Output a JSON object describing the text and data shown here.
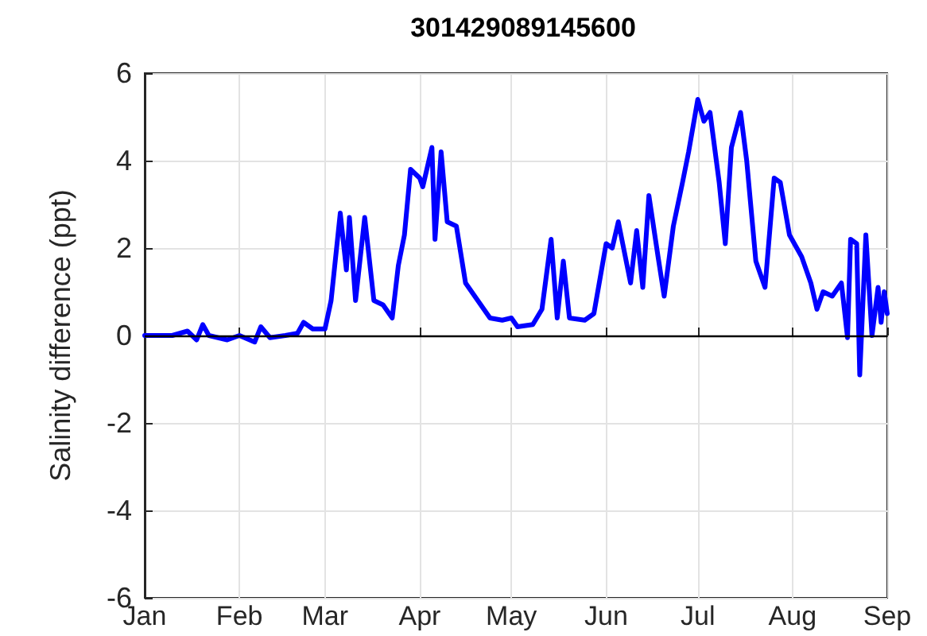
{
  "chart_data": {
    "type": "line",
    "title": "301429089145600",
    "ylabel": "Salinity difference (ppt)",
    "x": [
      "--01-01",
      "--01-10",
      "--01-15",
      "--01-18",
      "--01-20",
      "--01-22",
      "--01-28",
      "--02-01",
      "--02-06",
      "--02-08",
      "--02-11",
      "--02-16",
      "--02-20",
      "--02-22",
      "--02-25",
      "--03-01",
      "--03-03",
      "--03-06",
      "--03-08",
      "--03-09",
      "--03-11",
      "--03-14",
      "--03-17",
      "--03-20",
      "--03-23",
      "--03-25",
      "--03-27",
      "--03-29",
      "--04-01",
      "--04-02",
      "--04-04",
      "--04-05",
      "--04-06",
      "--04-08",
      "--04-10",
      "--04-13",
      "--04-16",
      "--04-20",
      "--04-24",
      "--04-28",
      "--05-01",
      "--05-03",
      "--05-08",
      "--05-11",
      "--05-14",
      "--05-16",
      "--05-18",
      "--05-20",
      "--05-25",
      "--05-28",
      "--06-01",
      "--06-03",
      "--06-05",
      "--06-07",
      "--06-09",
      "--06-11",
      "--06-13",
      "--06-15",
      "--06-18",
      "--06-20",
      "--06-23",
      "--06-26",
      "--06-28",
      "--07-01",
      "--07-03",
      "--07-05",
      "--07-08",
      "--07-10",
      "--07-12",
      "--07-15",
      "--07-17",
      "--07-20",
      "--07-23",
      "--07-26",
      "--07-28",
      "--07-31",
      "--08-04",
      "--08-07",
      "--08-09",
      "--08-11",
      "--08-14",
      "--08-17",
      "--08-19",
      "--08-20",
      "--08-22",
      "--08-23",
      "--08-25",
      "--08-27",
      "--08-29",
      "--08-30",
      "--08-31",
      "--09-01"
    ],
    "series": [
      {
        "color": "#0000ff",
        "values": [
          0,
          0,
          0.1,
          -0.1,
          0.25,
          0,
          -0.1,
          0,
          -0.15,
          0.2,
          -0.05,
          0,
          0.05,
          0.3,
          0.15,
          0.15,
          0.8,
          2.8,
          1.5,
          2.7,
          0.8,
          2.7,
          0.8,
          0.7,
          0.4,
          1.6,
          2.3,
          3.8,
          3.6,
          3.4,
          4,
          4.3,
          2.2,
          4.2,
          2.6,
          2.5,
          1.2,
          0.8,
          0.4,
          0.35,
          0.4,
          0.2,
          0.25,
          0.6,
          2.2,
          0.4,
          1.7,
          0.4,
          0.35,
          0.5,
          2.1,
          2,
          2.6,
          1.9,
          1.2,
          2.4,
          1.1,
          3.2,
          1.8,
          0.9,
          2.5,
          3.5,
          4.2,
          5.4,
          4.9,
          5.1,
          3.5,
          2.1,
          4.3,
          5.1,
          4,
          1.7,
          1.1,
          3.6,
          3.5,
          2.3,
          1.8,
          1.2,
          0.6,
          1,
          0.9,
          1.2,
          -0.05,
          2.2,
          2.1,
          -0.9,
          2.3,
          0,
          1.1,
          0.3,
          1,
          0.5
        ]
      }
    ],
    "xlim": [
      "--01-01",
      "--09-01"
    ],
    "xticks": [
      {
        "value": "--01-01",
        "label": "Jan"
      },
      {
        "value": "--02-01",
        "label": "Feb"
      },
      {
        "value": "--03-01",
        "label": "Mar"
      },
      {
        "value": "--04-01",
        "label": "Apr"
      },
      {
        "value": "--05-01",
        "label": "May"
      },
      {
        "value": "--06-01",
        "label": "Jun"
      },
      {
        "value": "--07-01",
        "label": "Jul"
      },
      {
        "value": "--08-01",
        "label": "Aug"
      },
      {
        "value": "--09-01",
        "label": "Sep"
      }
    ],
    "ylim": [
      -6,
      6
    ],
    "yticks": [
      -6,
      -4,
      -2,
      0,
      2,
      4,
      6
    ],
    "ref_lines": [
      {
        "axis": "y",
        "value": 0,
        "color": "#000000"
      }
    ],
    "grid": true,
    "marker": "none",
    "line_style": "solid"
  }
}
